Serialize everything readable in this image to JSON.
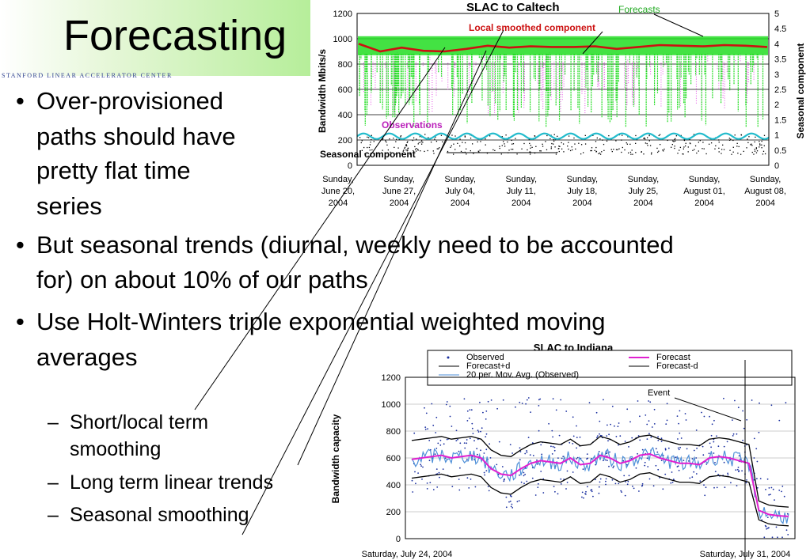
{
  "slide": {
    "title": "Forecasting",
    "logo_text": "STANFORD LINEAR ACCELERATOR CENTER",
    "bullets": [
      "Over-provisioned",
      "paths should have",
      "pretty flat time",
      "series",
      "But seasonal trends (diurnal, weekly need to be accounted",
      "for) on about 10% of our paths",
      "Use Holt-Winters triple exponential  weighted moving",
      "averages"
    ],
    "sub_bullets": [
      "Short/local term",
      "smoothing",
      "Long term linear trends",
      "Seasonal smoothing"
    ]
  },
  "chart_data": [
    {
      "type": "scatter",
      "title": "SLAC to Caltech",
      "ylabel": "Bandwidth Mbits/s",
      "y2label": "Seasonal component",
      "ylim": [
        0,
        1200
      ],
      "y2lim": [
        0,
        5
      ],
      "yticks": [
        "0",
        "200",
        "400",
        "600",
        "800",
        "1000",
        "1200"
      ],
      "y2ticks": [
        "0",
        "0.5",
        "1",
        "1.5",
        "2",
        "2.5",
        "3",
        "3.5",
        "4",
        "4.5",
        "5"
      ],
      "xticks": [
        [
          "Sunday,",
          "June 20,",
          "2004"
        ],
        [
          "Sunday,",
          "June 27,",
          "2004"
        ],
        [
          "Sunday,",
          "July 04,",
          "2004"
        ],
        [
          "Sunday,",
          "July 11,",
          "2004"
        ],
        [
          "Sunday,",
          "July 18,",
          "2004"
        ],
        [
          "Sunday,",
          "July 25,",
          "2004"
        ],
        [
          "Sunday,",
          "August 01,",
          "2004"
        ],
        [
          "Sunday,",
          "August 08,",
          "2004"
        ]
      ],
      "annotations": [
        "Forecasts",
        "Local smoothed component",
        "Observations",
        "Seasonal component"
      ],
      "colors": {
        "forecast": "#22dd22",
        "local": "#cc1111",
        "observations": "#dd22dd",
        "seasonal": "#22bbcc",
        "low": "#000000"
      },
      "series": [
        {
          "name": "Forecasts",
          "approx_level": 950
        },
        {
          "name": "Local smoothed component",
          "values": [
            960,
            900,
            930,
            905,
            900,
            920,
            945,
            930,
            940,
            935,
            935,
            940,
            920,
            935,
            950,
            945,
            940,
            950,
            945,
            935
          ]
        },
        {
          "name": "Observations",
          "approx_range": [
            300,
            1000
          ]
        },
        {
          "name": "Seasonal component",
          "approx_level": 230
        }
      ]
    },
    {
      "type": "line",
      "title": "SLAC to Indiana",
      "ylabel": "Bandwidth capacity",
      "ylim": [
        0,
        1200
      ],
      "yticks": [
        "0",
        "200",
        "400",
        "600",
        "800",
        "1000",
        "1200"
      ],
      "xticks": [
        "Saturday, July 24, 2004",
        "Saturday, July 31, 2004"
      ],
      "legend": [
        "Observed",
        "Forecast",
        "Forecast+d",
        "Forecast-d",
        "20 per. Mov. Avg. (Observed)"
      ],
      "annotation": "Event",
      "colors": {
        "observed": "#1a2fa0",
        "forecast": "#e020d0",
        "band": "#000000",
        "avg": "#4d8fd8"
      },
      "series": [
        {
          "name": "Forecast",
          "values": [
            590,
            600,
            610,
            620,
            600,
            610,
            620,
            600,
            520,
            480,
            470,
            520,
            560,
            580,
            570,
            560,
            600,
            550,
            560,
            620,
            600,
            560,
            580,
            620,
            630,
            600,
            580,
            560,
            560,
            550,
            600,
            610,
            600,
            580,
            560,
            210,
            180,
            170,
            165
          ]
        },
        {
          "name": "Forecast+d",
          "offset": 140
        },
        {
          "name": "Forecast-d",
          "offset": -140
        }
      ]
    }
  ]
}
